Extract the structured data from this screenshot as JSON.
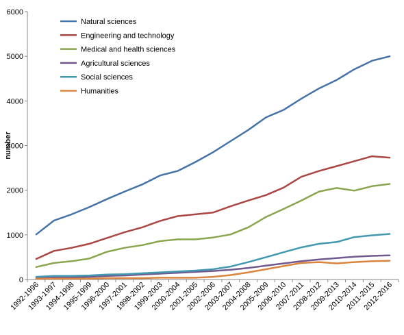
{
  "chart_data": {
    "type": "line",
    "title": "",
    "xlabel": "",
    "ylabel": "number",
    "ylim": [
      0,
      6000
    ],
    "yticks": [
      0,
      1000,
      2000,
      3000,
      4000,
      5000,
      6000
    ],
    "grid": false,
    "legend_position": "top-left",
    "categories": [
      "1992-1996",
      "1993-1997",
      "1994-1998",
      "1995-1999",
      "1996-2000",
      "1997-2001",
      "1998-2002",
      "1999-2003",
      "2000-2004",
      "2001-2005",
      "2002-2006",
      "2003-2007",
      "2004-2008",
      "2005-2009",
      "2006-2010",
      "2007-2011",
      "2008-2012",
      "2009-2013",
      "2010-2014",
      "2011-2015",
      "2012-2016"
    ],
    "series": [
      {
        "name": "Natural sciences",
        "color": "#4572a7",
        "values": [
          1010,
          1320,
          1460,
          1620,
          1800,
          1970,
          2130,
          2330,
          2430,
          2630,
          2850,
          3100,
          3350,
          3630,
          3800,
          4050,
          4280,
          4470,
          4710,
          4900,
          5000
        ]
      },
      {
        "name": "Engineering and technology",
        "color": "#aa4643",
        "values": [
          460,
          640,
          710,
          800,
          930,
          1060,
          1170,
          1310,
          1420,
          1460,
          1500,
          1640,
          1770,
          1890,
          2060,
          2300,
          2430,
          2540,
          2650,
          2760,
          2730
        ]
      },
      {
        "name": "Medical and health sciences",
        "color": "#89a54e",
        "values": [
          280,
          370,
          410,
          470,
          620,
          710,
          770,
          860,
          900,
          900,
          940,
          1010,
          1170,
          1400,
          1580,
          1770,
          1970,
          2050,
          1990,
          2090,
          2140
        ]
      },
      {
        "name": "Agricultural sciences",
        "color": "#71588f",
        "values": [
          30,
          50,
          50,
          60,
          80,
          90,
          110,
          130,
          150,
          170,
          190,
          220,
          260,
          310,
          360,
          410,
          450,
          480,
          510,
          530,
          540
        ]
      },
      {
        "name": "Social sciences",
        "color": "#4198af",
        "values": [
          60,
          80,
          80,
          90,
          110,
          120,
          140,
          160,
          180,
          200,
          230,
          290,
          390,
          500,
          610,
          720,
          800,
          840,
          950,
          990,
          1020
        ]
      },
      {
        "name": "Humanities",
        "color": "#db843d",
        "values": [
          20,
          20,
          20,
          20,
          30,
          30,
          30,
          40,
          40,
          40,
          60,
          100,
          160,
          230,
          300,
          370,
          390,
          360,
          390,
          410,
          420
        ]
      }
    ]
  }
}
